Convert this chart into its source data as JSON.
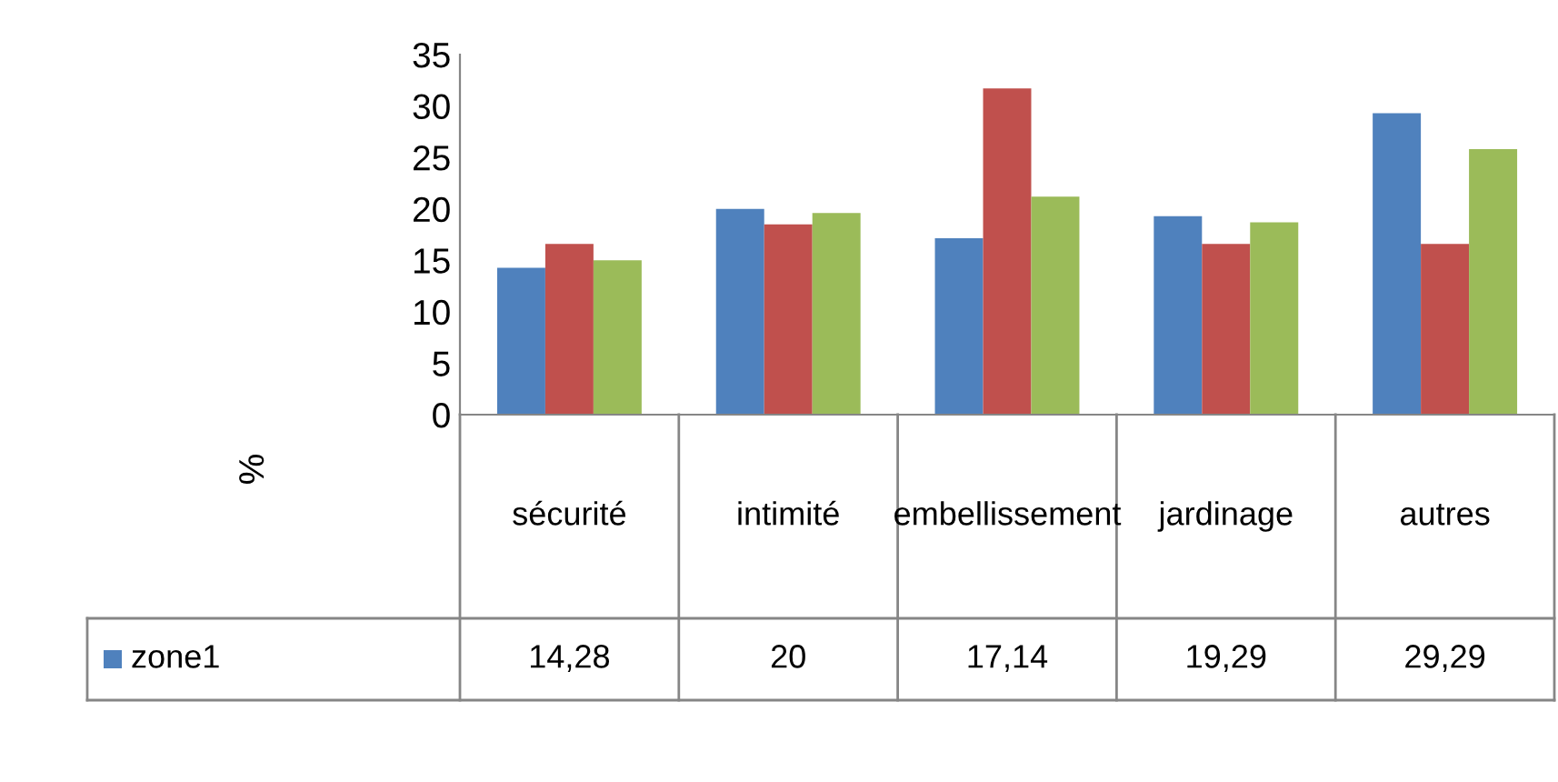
{
  "chart_data": {
    "type": "bar",
    "ylabel": "%",
    "categories": [
      "sécurité",
      "intimité",
      "embellissement",
      "jardinage",
      "autres"
    ],
    "series": [
      {
        "name": "zone1",
        "color": "#4f81bd",
        "values": [
          14.28,
          20,
          17.14,
          19.29,
          29.29
        ],
        "value_labels": [
          "14,28",
          "20",
          "17,14",
          "19,29",
          "29,29"
        ]
      },
      {
        "color": "#c0504d",
        "values": [
          16.6,
          18.5,
          31.7,
          16.6,
          16.6
        ]
      },
      {
        "color": "#9bbb59",
        "values": [
          15.0,
          19.6,
          21.2,
          18.7,
          25.8
        ]
      }
    ],
    "ylim": [
      0,
      35
    ],
    "yticks": [
      0,
      5,
      10,
      15,
      20,
      25,
      30,
      35
    ],
    "grid": false
  }
}
